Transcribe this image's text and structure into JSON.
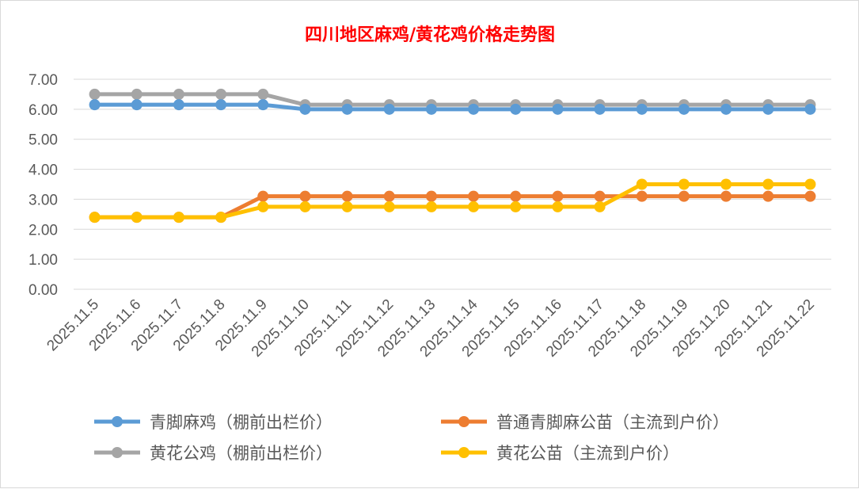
{
  "chart_data": {
    "type": "line",
    "title": "四川地区麻鸡/黄花鸡价格走势图",
    "xlabel": "",
    "ylabel": "",
    "ylim": [
      0,
      7
    ],
    "yticks": [
      "0.00",
      "1.00",
      "2.00",
      "3.00",
      "4.00",
      "5.00",
      "6.00",
      "7.00"
    ],
    "grid": true,
    "legend_position": "bottom",
    "categories": [
      "2025.11.5",
      "2025.11.6",
      "2025.11.7",
      "2025.11.8",
      "2025.11.9",
      "2025.11.10",
      "2025.11.11",
      "2025.11.12",
      "2025.11.13",
      "2025.11.14",
      "2025.11.15",
      "2025.11.16",
      "2025.11.17",
      "2025.11.18",
      "2025.11.19",
      "2025.11.20",
      "2025.11.21",
      "2025.11.22"
    ],
    "series": [
      {
        "name": "青脚麻鸡（棚前出栏价）",
        "color": "#5b9bd5",
        "values": [
          6.15,
          6.15,
          6.15,
          6.15,
          6.15,
          6.0,
          6.0,
          6.0,
          6.0,
          6.0,
          6.0,
          6.0,
          6.0,
          6.0,
          6.0,
          6.0,
          6.0,
          6.0
        ]
      },
      {
        "name": "普通青脚麻公苗（主流到户价）",
        "color": "#ed7d31",
        "values": [
          2.4,
          2.4,
          2.4,
          2.4,
          3.1,
          3.1,
          3.1,
          3.1,
          3.1,
          3.1,
          3.1,
          3.1,
          3.1,
          3.1,
          3.1,
          3.1,
          3.1,
          3.1
        ]
      },
      {
        "name": "黄花公鸡（棚前出栏价）",
        "color": "#a5a5a5",
        "values": [
          6.5,
          6.5,
          6.5,
          6.5,
          6.5,
          6.15,
          6.15,
          6.15,
          6.15,
          6.15,
          6.15,
          6.15,
          6.15,
          6.15,
          6.15,
          6.15,
          6.15,
          6.15
        ]
      },
      {
        "name": "黄花公苗（主流到户价）",
        "color": "#ffc000",
        "values": [
          2.4,
          2.4,
          2.4,
          2.4,
          2.75,
          2.75,
          2.75,
          2.75,
          2.75,
          2.75,
          2.75,
          2.75,
          2.75,
          3.5,
          3.5,
          3.5,
          3.5,
          3.5
        ]
      }
    ]
  }
}
